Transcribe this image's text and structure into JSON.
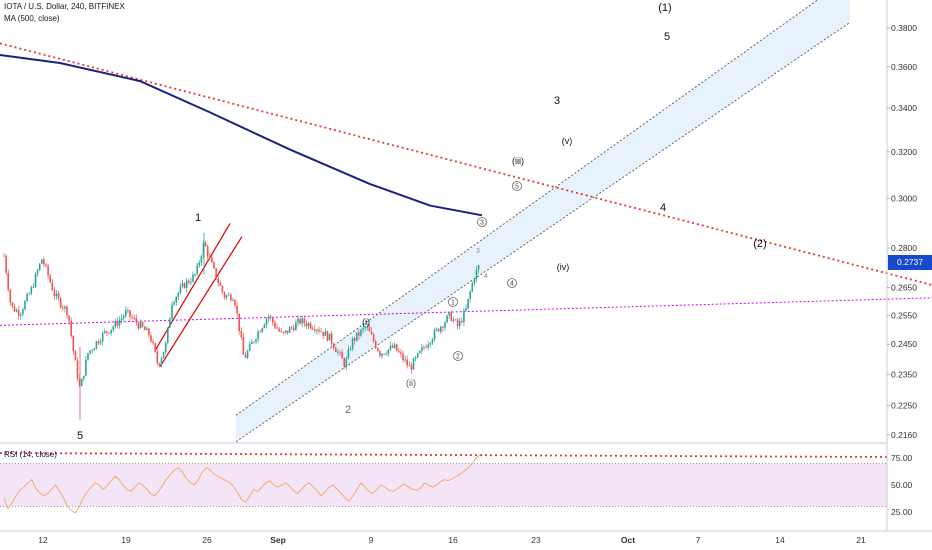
{
  "header": {
    "symbol_line": "IOTA / U.S. Dollar, 240, BITFINEX",
    "ma_label": "MA (500, close)",
    "rsi_label": "RSI (14, close)"
  },
  "current_price": "0.2737",
  "colors": {
    "candle_up": "#26a69a",
    "candle_down": "#ef5350",
    "ma": "#1a237e",
    "trendline": "#e53935",
    "support": "#d500f9",
    "channel_fill": "#e3f0fc",
    "rsi_line": "#f4a460",
    "rsi_band": "#f3e5f5"
  },
  "chart_data": [
    {
      "type": "candlestick",
      "title": "IOTA / U.S. Dollar, 240, BITFINEX",
      "y_axis_ticks": [
        "0.3800",
        "0.3600",
        "0.3400",
        "0.3200",
        "0.3000",
        "0.2800",
        "0.2650",
        "0.2550",
        "0.2450",
        "0.2350",
        "0.2250",
        "0.2160"
      ],
      "y_scale": "log",
      "x_axis_ticks": [
        "12",
        "19",
        "26",
        "Sep",
        "9",
        "16",
        "23",
        "Oct",
        "7",
        "14",
        "21"
      ],
      "last_price": 0.2737,
      "price_path": [
        [
          4,
          0.277
        ],
        [
          11,
          0.258
        ],
        [
          20,
          0.256
        ],
        [
          31,
          0.264
        ],
        [
          42,
          0.276
        ],
        [
          55,
          0.262
        ],
        [
          68,
          0.256
        ],
        [
          74,
          0.241
        ],
        [
          80,
          0.23
        ],
        [
          88,
          0.242
        ],
        [
          102,
          0.248
        ],
        [
          116,
          0.252
        ],
        [
          126,
          0.256
        ],
        [
          138,
          0.252
        ],
        [
          150,
          0.248
        ],
        [
          158,
          0.238
        ],
        [
          166,
          0.245
        ],
        [
          172,
          0.26
        ],
        [
          184,
          0.266
        ],
        [
          196,
          0.27
        ],
        [
          204,
          0.282
        ],
        [
          214,
          0.271
        ],
        [
          224,
          0.262
        ],
        [
          234,
          0.262
        ],
        [
          244,
          0.24
        ],
        [
          256,
          0.248
        ],
        [
          268,
          0.255
        ],
        [
          282,
          0.248
        ],
        [
          300,
          0.253
        ],
        [
          316,
          0.251
        ],
        [
          330,
          0.247
        ],
        [
          345,
          0.238
        ],
        [
          352,
          0.246
        ],
        [
          366,
          0.251
        ],
        [
          380,
          0.242
        ],
        [
          394,
          0.244
        ],
        [
          410,
          0.237
        ],
        [
          426,
          0.245
        ],
        [
          440,
          0.251
        ],
        [
          450,
          0.255
        ],
        [
          458,
          0.251
        ],
        [
          466,
          0.257
        ],
        [
          474,
          0.269
        ],
        [
          480,
          0.274
        ]
      ],
      "ma_500_path": [
        [
          0,
          0.366
        ],
        [
          60,
          0.362
        ],
        [
          140,
          0.353
        ],
        [
          210,
          0.338
        ],
        [
          290,
          0.321
        ],
        [
          370,
          0.306
        ],
        [
          430,
          0.297
        ],
        [
          482,
          0.293
        ]
      ],
      "overlays": {
        "descending_trendline": [
          [
            0,
            0.372
          ],
          [
            932,
            0.266
          ]
        ],
        "support_line": [
          [
            0,
            0.2515
          ],
          [
            932,
            0.2613
          ]
        ],
        "rising_wedge": {
          "upper": [
            [
              155,
              0.2428
            ],
            [
              230,
              0.2897
            ]
          ],
          "lower": [
            [
              160,
              0.2375
            ],
            [
              242,
              0.2845
            ]
          ]
        },
        "channel": {
          "lower": [
            [
              236,
              0.214
            ],
            [
              850,
              0.383
            ]
          ],
          "upper": [
            [
              236,
              0.222
            ],
            [
              850,
              0.408
            ]
          ]
        }
      },
      "wave_labels": {
        "primary": [
          "5",
          "1",
          "2"
        ],
        "minor": [
          "(i)",
          "(ii)",
          "(iii)",
          "(iv)",
          "(v)"
        ],
        "circled": [
          "1",
          "2",
          "3",
          "4",
          "5"
        ],
        "small": [
          "3",
          "4"
        ],
        "projection": [
          "(1)",
          "5",
          "3",
          "4",
          "(2)"
        ]
      }
    },
    {
      "type": "line",
      "title": "RSI (14, close)",
      "y_axis_ticks": [
        "75.00",
        "50.00",
        "25.00"
      ],
      "ylim": [
        20,
        80
      ],
      "upper_band": 70,
      "lower_band": 30,
      "values": [
        38,
        28,
        33,
        40,
        45,
        48,
        52,
        55,
        47,
        43,
        40,
        42,
        46,
        50,
        44,
        38,
        30,
        26,
        24,
        30,
        38,
        44,
        48,
        52,
        50,
        46,
        49,
        54,
        58,
        55,
        50,
        46,
        44,
        48,
        52,
        50,
        46,
        42,
        40,
        44,
        50,
        56,
        60,
        64,
        66,
        62,
        56,
        52,
        50,
        55,
        62,
        66,
        64,
        60,
        58,
        56,
        54,
        52,
        48,
        42,
        36,
        34,
        40,
        46,
        44,
        48,
        52,
        54,
        50,
        48,
        50,
        52,
        49,
        45,
        42,
        46,
        50,
        52,
        48,
        44,
        40,
        44,
        48,
        50,
        46,
        42,
        38,
        35,
        40,
        46,
        52,
        48,
        44,
        42,
        46,
        50,
        48,
        45,
        44,
        46,
        49,
        51,
        48,
        46,
        45,
        47,
        52,
        50,
        48,
        50,
        53,
        55,
        54,
        56,
        58,
        60,
        63,
        66,
        70,
        75,
        78
      ]
    }
  ]
}
